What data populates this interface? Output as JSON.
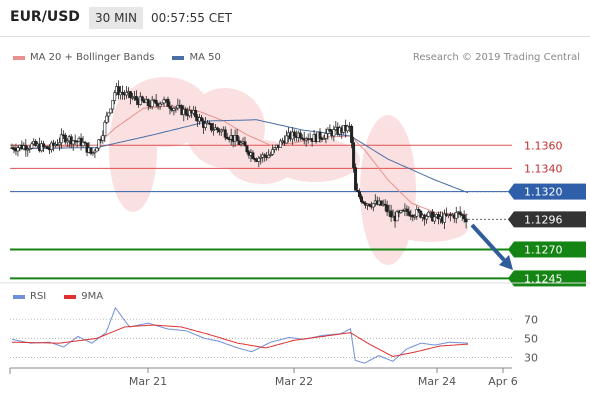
{
  "header": {
    "pair": "EUR/USD",
    "timeframe": "30 MIN",
    "time": "00:57:55 CET"
  },
  "legend": {
    "ma20_bb": "MA 20 + Bollinger Bands",
    "ma50": "MA 50",
    "credit": "Research © 2019 Trading Central"
  },
  "rsi_legend": {
    "rsi": "RSI",
    "ma9": "9MA"
  },
  "colors": {
    "bollinger": "#f7c8c8",
    "ma20": "#e8908c",
    "ma50": "#4a6fa5",
    "resistance": "#e05050",
    "pivot": "#2e5fa8",
    "support": "#148414",
    "price_tag": "#333333",
    "arrow": "#2f5d9a",
    "rsi": "#6f8fd8",
    "rsi_ma": "#e03030"
  },
  "chart_data": [
    {
      "type": "candlestick",
      "title": "",
      "x_ticks": [
        "Mar 21",
        "Mar 22",
        "Mar 24",
        "Apr 6"
      ],
      "ylim": [
        1.1235,
        1.1425
      ],
      "current_price": 1.1296,
      "levels": [
        {
          "label": "1.1360",
          "value": 1.136,
          "kind": "resistance"
        },
        {
          "label": "1.1340",
          "value": 1.134,
          "kind": "resistance"
        },
        {
          "label": "1.1320",
          "value": 1.132,
          "kind": "pivot"
        },
        {
          "label": "1.1296",
          "value": 1.1296,
          "kind": "price"
        },
        {
          "label": "1.1270",
          "value": 1.127,
          "kind": "support"
        },
        {
          "label": "1.1245",
          "value": 1.1245,
          "kind": "support"
        }
      ],
      "series": [
        {
          "name": "MA 20 + Bollinger Bands",
          "kind": "ma20"
        },
        {
          "name": "MA 50",
          "kind": "ma50"
        }
      ],
      "price_path": [
        {
          "t": 0,
          "p": 1.1358
        },
        {
          "t": 4,
          "p": 1.136
        },
        {
          "t": 8,
          "p": 1.1357
        },
        {
          "t": 11,
          "p": 1.1367
        },
        {
          "t": 15,
          "p": 1.1362
        },
        {
          "t": 17,
          "p": 1.1352
        },
        {
          "t": 19,
          "p": 1.1368
        },
        {
          "t": 22,
          "p": 1.1408
        },
        {
          "t": 25,
          "p": 1.1402
        },
        {
          "t": 29,
          "p": 1.1395
        },
        {
          "t": 32,
          "p": 1.1398
        },
        {
          "t": 36,
          "p": 1.139
        },
        {
          "t": 39,
          "p": 1.1386
        },
        {
          "t": 41,
          "p": 1.1377
        },
        {
          "t": 45,
          "p": 1.1372
        },
        {
          "t": 49,
          "p": 1.136
        },
        {
          "t": 52,
          "p": 1.1349
        },
        {
          "t": 55,
          "p": 1.1352
        },
        {
          "t": 58,
          "p": 1.1366
        },
        {
          "t": 61,
          "p": 1.137
        },
        {
          "t": 64,
          "p": 1.1366
        },
        {
          "t": 67,
          "p": 1.137
        },
        {
          "t": 70,
          "p": 1.1373
        },
        {
          "t": 72,
          "p": 1.1375
        },
        {
          "t": 73,
          "p": 1.132
        },
        {
          "t": 75,
          "p": 1.1311
        },
        {
          "t": 79,
          "p": 1.1308
        },
        {
          "t": 81,
          "p": 1.1297
        },
        {
          "t": 84,
          "p": 1.1303
        },
        {
          "t": 88,
          "p": 1.13
        },
        {
          "t": 91,
          "p": 1.1296
        },
        {
          "t": 95,
          "p": 1.1301
        },
        {
          "t": 97,
          "p": 1.1296
        }
      ],
      "ma20_path": [
        {
          "t": 0,
          "p": 1.1357
        },
        {
          "t": 18,
          "p": 1.136
        },
        {
          "t": 22,
          "p": 1.1375
        },
        {
          "t": 28,
          "p": 1.1392
        },
        {
          "t": 34,
          "p": 1.1394
        },
        {
          "t": 40,
          "p": 1.1389
        },
        {
          "t": 45,
          "p": 1.1381
        },
        {
          "t": 50,
          "p": 1.1369
        },
        {
          "t": 55,
          "p": 1.136
        },
        {
          "t": 60,
          "p": 1.1362
        },
        {
          "t": 66,
          "p": 1.1367
        },
        {
          "t": 72,
          "p": 1.1368
        },
        {
          "t": 75,
          "p": 1.1356
        },
        {
          "t": 80,
          "p": 1.133
        },
        {
          "t": 85,
          "p": 1.131
        },
        {
          "t": 90,
          "p": 1.1302
        },
        {
          "t": 97,
          "p": 1.13
        }
      ],
      "ma50_path": [
        {
          "t": 0,
          "p": 1.1357
        },
        {
          "t": 18,
          "p": 1.1358
        },
        {
          "t": 30,
          "p": 1.1369
        },
        {
          "t": 42,
          "p": 1.1381
        },
        {
          "t": 52,
          "p": 1.1382
        },
        {
          "t": 62,
          "p": 1.1373
        },
        {
          "t": 72,
          "p": 1.1368
        },
        {
          "t": 80,
          "p": 1.1348
        },
        {
          "t": 90,
          "p": 1.133
        },
        {
          "t": 97,
          "p": 1.1319
        }
      ]
    },
    {
      "type": "line",
      "title": "",
      "ylim": [
        20,
        85
      ],
      "y_ticks": [
        70,
        50,
        30
      ],
      "series": [
        {
          "name": "RSI",
          "kind": "rsi"
        },
        {
          "name": "9MA",
          "kind": "rsi_ma"
        }
      ],
      "rsi_path": [
        {
          "t": 0,
          "p": 49
        },
        {
          "t": 4,
          "p": 45
        },
        {
          "t": 8,
          "p": 46
        },
        {
          "t": 11,
          "p": 41
        },
        {
          "t": 14,
          "p": 52
        },
        {
          "t": 17,
          "p": 45
        },
        {
          "t": 20,
          "p": 56
        },
        {
          "t": 22,
          "p": 82
        },
        {
          "t": 25,
          "p": 62
        },
        {
          "t": 29,
          "p": 66
        },
        {
          "t": 33,
          "p": 60
        },
        {
          "t": 37,
          "p": 58
        },
        {
          "t": 41,
          "p": 50
        },
        {
          "t": 44,
          "p": 47
        },
        {
          "t": 48,
          "p": 40
        },
        {
          "t": 51,
          "p": 36
        },
        {
          "t": 55,
          "p": 46
        },
        {
          "t": 59,
          "p": 51
        },
        {
          "t": 62,
          "p": 49
        },
        {
          "t": 66,
          "p": 53
        },
        {
          "t": 70,
          "p": 55
        },
        {
          "t": 72,
          "p": 60
        },
        {
          "t": 73,
          "p": 27
        },
        {
          "t": 75,
          "p": 24
        },
        {
          "t": 78,
          "p": 32
        },
        {
          "t": 81,
          "p": 26
        },
        {
          "t": 84,
          "p": 39
        },
        {
          "t": 87,
          "p": 45
        },
        {
          "t": 90,
          "p": 43
        },
        {
          "t": 93,
          "p": 46
        },
        {
          "t": 97,
          "p": 45
        }
      ],
      "ma9_path": [
        {
          "t": 0,
          "p": 46
        },
        {
          "t": 10,
          "p": 45
        },
        {
          "t": 18,
          "p": 50
        },
        {
          "t": 24,
          "p": 62
        },
        {
          "t": 30,
          "p": 64
        },
        {
          "t": 36,
          "p": 62
        },
        {
          "t": 42,
          "p": 54
        },
        {
          "t": 48,
          "p": 45
        },
        {
          "t": 54,
          "p": 40
        },
        {
          "t": 60,
          "p": 48
        },
        {
          "t": 66,
          "p": 52
        },
        {
          "t": 72,
          "p": 56
        },
        {
          "t": 76,
          "p": 44
        },
        {
          "t": 81,
          "p": 31
        },
        {
          "t": 86,
          "p": 36
        },
        {
          "t": 91,
          "p": 42
        },
        {
          "t": 97,
          "p": 44
        }
      ]
    }
  ]
}
